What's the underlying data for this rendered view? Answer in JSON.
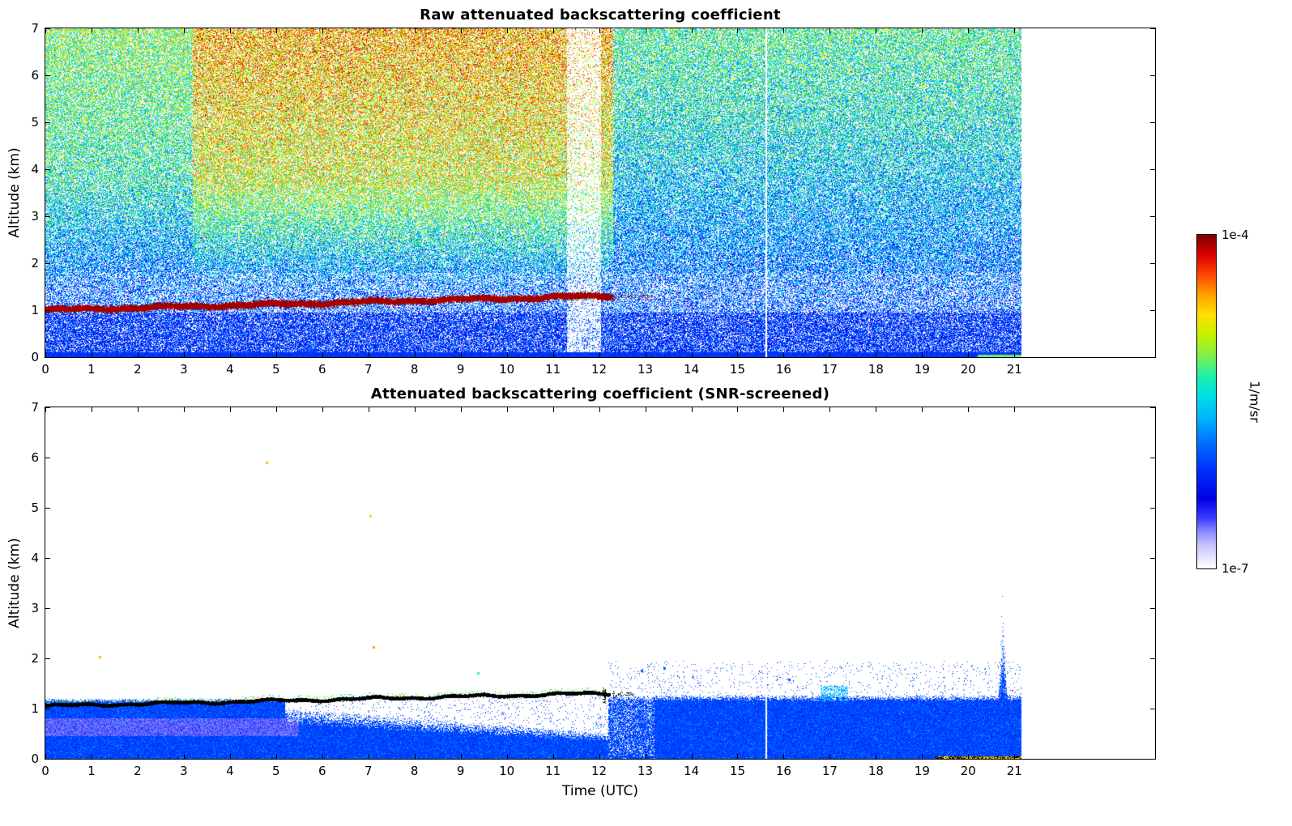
{
  "figure": {
    "xlabel": "Time (UTC)",
    "ylabel": "Altitude (km)"
  },
  "colorbar": {
    "label": "1/m/sr",
    "max_label": "1e-4",
    "min_label": "1e-7",
    "scale": "log",
    "stops": [
      {
        "p": 0.0,
        "c": "#ffffff"
      },
      {
        "p": 0.03,
        "c": "#e6e6ff"
      },
      {
        "p": 0.07,
        "c": "#c4c4ff"
      },
      {
        "p": 0.11,
        "c": "#8c8cff"
      },
      {
        "p": 0.15,
        "c": "#3c3cff"
      },
      {
        "p": 0.21,
        "c": "#0000e6"
      },
      {
        "p": 0.3,
        "c": "#0032ff"
      },
      {
        "p": 0.38,
        "c": "#0073ff"
      },
      {
        "p": 0.45,
        "c": "#00b4ff"
      },
      {
        "p": 0.52,
        "c": "#00e1e1"
      },
      {
        "p": 0.58,
        "c": "#23f0a5"
      },
      {
        "p": 0.64,
        "c": "#82f046"
      },
      {
        "p": 0.7,
        "c": "#c8f000"
      },
      {
        "p": 0.76,
        "c": "#ffe100"
      },
      {
        "p": 0.82,
        "c": "#ffa000"
      },
      {
        "p": 0.88,
        "c": "#ff4600"
      },
      {
        "p": 0.94,
        "c": "#dc0000"
      },
      {
        "p": 1.0,
        "c": "#7d0000"
      }
    ]
  },
  "chart_data": [
    {
      "id": "raw",
      "type": "heatmap",
      "title": "Raw attenuated backscattering coefficient",
      "ylabel": "Altitude (km)",
      "units": "1/m/sr",
      "value_range": [
        "1e-7",
        "1e-4"
      ],
      "xlim": [
        0,
        24.05
      ],
      "ylim": [
        0,
        7
      ],
      "x_ticks": [
        0,
        1,
        2,
        3,
        4,
        5,
        6,
        7,
        8,
        9,
        10,
        11,
        12,
        13,
        14,
        15,
        16,
        17,
        18,
        19,
        20,
        21
      ],
      "y_ticks": [
        0,
        1,
        2,
        3,
        4,
        5,
        6,
        7
      ],
      "data_time_extent": [
        0,
        21.15
      ],
      "aerosol_layer": {
        "t_start": 0,
        "t_end": 12.3,
        "alt_start_km": 1.0,
        "alt_end_km": 1.3,
        "half_thickness_km": 0.07,
        "value": "saturated dark red (>= 1e-4)",
        "sparse_tail_t_end": 13.15
      },
      "surface_band_top_km": 0.1,
      "green_surface_patch_t": [
        20.2,
        21.15
      ],
      "faint_column_t": [
        11.3,
        12.05
      ],
      "white_gap_line_t": 15.62,
      "noise": {
        "seed": 1234567,
        "base_value": 0.3,
        "altitude_gain": 0.028,
        "warm_boost_mid_day": 0.3,
        "warm_boost_early": 0.14,
        "warm_t_start": 3.2,
        "warm_alt_ramp": [
          1.3,
          2.5
        ],
        "cool_boost_late": 0.08,
        "jitter": 0.38,
        "white_fraction_default": 0.32,
        "white_fraction_low": 0.25,
        "white_fraction_band": 0.45,
        "white_fraction_gap_column": 0.78
      }
    },
    {
      "id": "screened",
      "type": "heatmap",
      "title": "Attenuated backscattering coefficient (SNR-screened)",
      "ylabel": "Altitude (km)",
      "units": "1/m/sr",
      "value_range": [
        "1e-7",
        "1e-4"
      ],
      "xlim": [
        0,
        24.05
      ],
      "ylim": [
        0,
        7
      ],
      "x_ticks": [
        0,
        1,
        2,
        3,
        4,
        5,
        6,
        7,
        8,
        9,
        10,
        11,
        12,
        13,
        14,
        15,
        16,
        17,
        18,
        19,
        20,
        21
      ],
      "y_ticks": [
        0,
        1,
        2,
        3,
        4,
        5,
        6,
        7
      ],
      "data_time_extent": [
        0,
        21.15
      ],
      "cloud_top_line": {
        "t_start": 0,
        "t_end": 12.25,
        "alt_start_km": 1.05,
        "alt_end_km": 1.3,
        "color": "#000000",
        "dashed_tail_t_end": 12.75
      },
      "vertical_dash": {
        "t": [
          12.08,
          12.14
        ],
        "alt": [
          1.1,
          1.42
        ]
      },
      "boundary_layer": {
        "blue_top_km_early": 1.12,
        "white_wedge_t": [
          5.2,
          12.2
        ],
        "wedge_floor_start_km": 0.85,
        "wedge_floor_slope_km_per_h": -0.06,
        "patchy_t_end": 13.2,
        "blue_top_km_late": 1.15,
        "light_band_alt_km": [
          0.45,
          0.8
        ],
        "light_band_t_end": 5.5
      },
      "spike": {
        "t": 20.75,
        "top_km": 2.75,
        "half_width_h": 0.1
      },
      "cyan_patch": {
        "t": [
          16.8,
          17.4
        ],
        "alt_km": [
          1.15,
          1.45
        ]
      },
      "surface_dark_band": {
        "t_start": 19.3,
        "alt_top_km": 0.05
      },
      "white_gap_line_t": 15.62,
      "specks": [
        {
          "t": 1.15,
          "alt": 2.05,
          "v": 0.8
        },
        {
          "t": 4.78,
          "alt": 5.92,
          "v": 0.8
        },
        {
          "t": 7.02,
          "alt": 4.85,
          "v": 0.78
        },
        {
          "t": 7.1,
          "alt": 2.25,
          "v": 0.82
        },
        {
          "t": 9.35,
          "alt": 1.72,
          "v": 0.6
        },
        {
          "t": 12.9,
          "alt": 1.78,
          "v": 0.35
        },
        {
          "t": 13.4,
          "alt": 1.82,
          "v": 0.35
        },
        {
          "t": 16.1,
          "alt": 1.6,
          "v": 0.35
        }
      ],
      "noise": {
        "seed": 987654,
        "blue_base": 0.27,
        "blue_jitter": 0.1,
        "speck_fraction": 0.05
      }
    }
  ]
}
